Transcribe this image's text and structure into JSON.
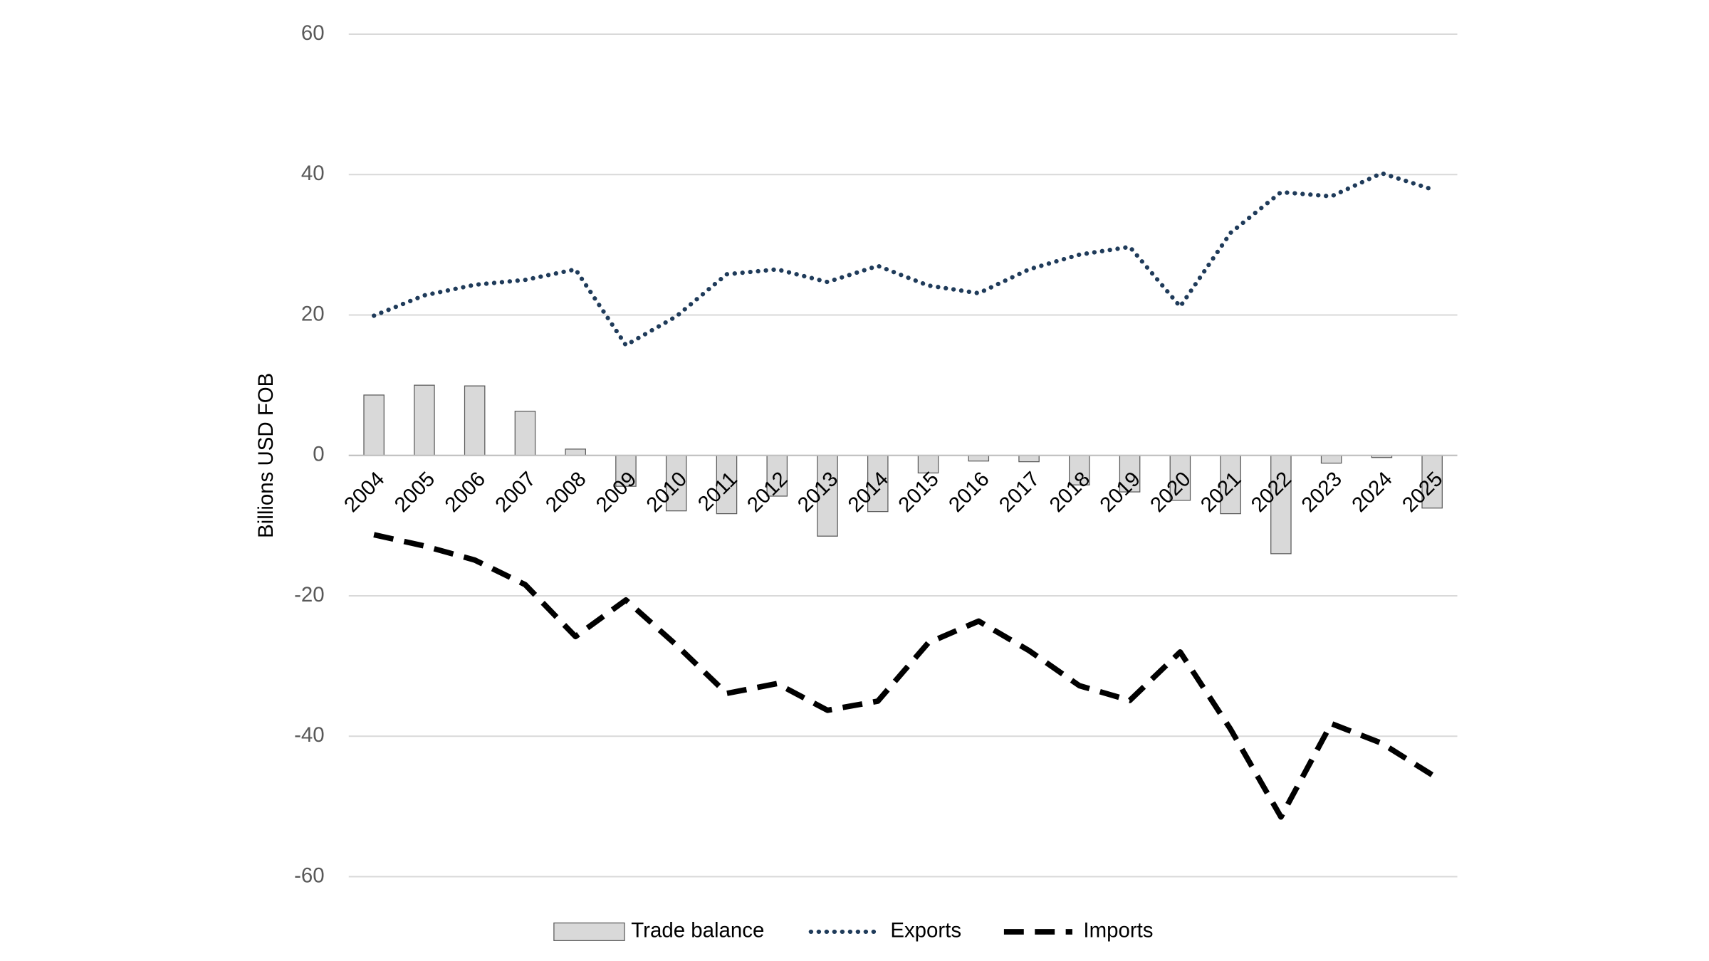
{
  "chart_data": {
    "type": "bar",
    "y_label": "Billions USD FOB",
    "categories": [
      "2004",
      "2005",
      "2006",
      "2007",
      "2008",
      "2009",
      "2010",
      "2011",
      "2012",
      "2013",
      "2014",
      "2015",
      "2016",
      "2017",
      "2018",
      "2019",
      "2020",
      "2021",
      "2022",
      "2023",
      "2024",
      "2025"
    ],
    "series": [
      {
        "name": "Trade balance",
        "type": "bar",
        "color": "#d9d9d9",
        "values": [
          8.6,
          10.0,
          9.9,
          6.3,
          0.9,
          -4.4,
          -7.9,
          -8.3,
          -5.8,
          -11.5,
          -8.0,
          -2.5,
          -0.8,
          -0.9,
          -4.2,
          -5.2,
          -6.4,
          -8.3,
          -14.0,
          -1.1,
          -0.3,
          -7.5
        ]
      },
      {
        "name": "Exports",
        "type": "line",
        "color": "#1f3b5a",
        "dash": "dotted",
        "values": [
          19.9,
          22.8,
          24.3,
          25.0,
          26.5,
          15.7,
          19.8,
          25.8,
          26.5,
          24.7,
          27.0,
          24.2,
          23.1,
          26.5,
          28.6,
          29.7,
          21.2,
          31.7,
          37.5,
          36.9,
          40.2,
          37.9
        ]
      },
      {
        "name": "Imports",
        "type": "line",
        "color": "#000000",
        "dash": "dashed",
        "values": [
          -11.3,
          -12.9,
          -14.9,
          -18.4,
          -25.8,
          -20.6,
          -27.0,
          -33.9,
          -32.5,
          -36.3,
          -35.0,
          -26.7,
          -23.6,
          -27.8,
          -32.8,
          -34.9,
          -28.0,
          -39.0,
          -51.5,
          -38.2,
          -41.0,
          -45.5
        ]
      }
    ],
    "ylim": [
      -60,
      60
    ],
    "yticks": [
      -60,
      -40,
      -20,
      0,
      20,
      40,
      60
    ],
    "grid": true,
    "legend": "bottom"
  }
}
